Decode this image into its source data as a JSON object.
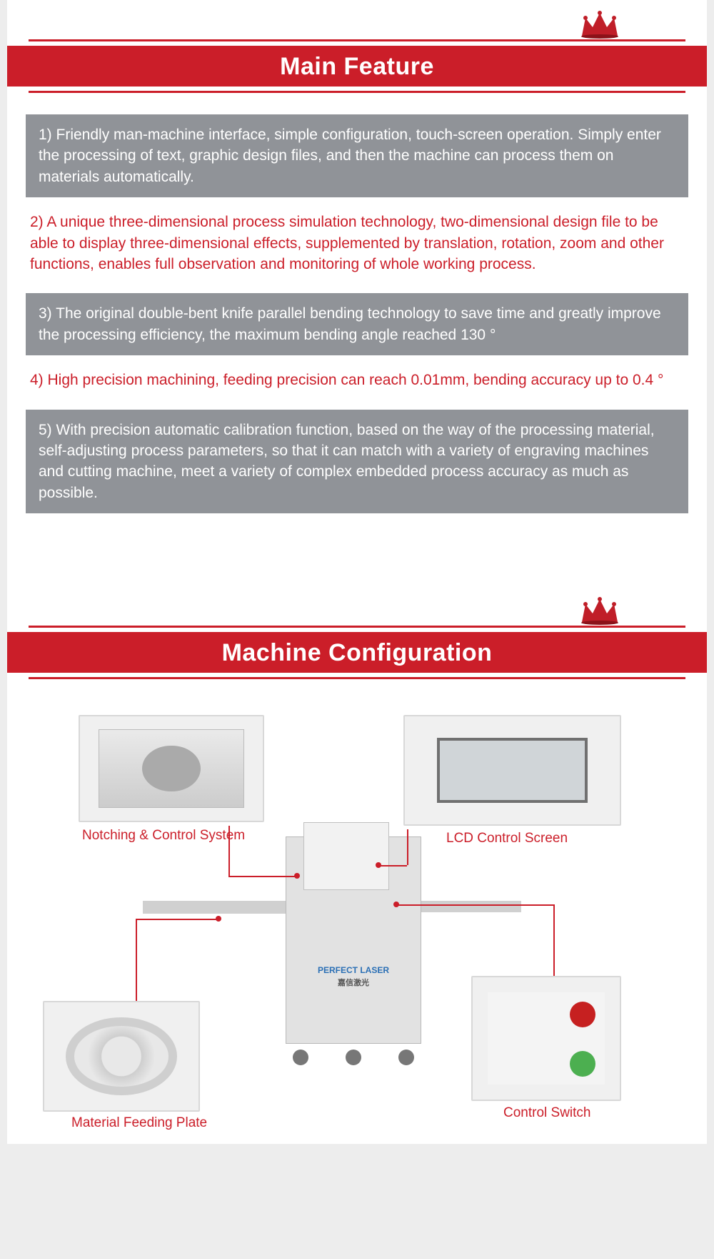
{
  "colors": {
    "brand_red": "#cb1e29",
    "gray_block": "#909398",
    "page_bg": "#ededed"
  },
  "section1": {
    "title": "Main Feature",
    "features": [
      {
        "style": "gray",
        "text": "1) Friendly man-machine interface, simple configuration, touch-screen operation. Simply enter the processing of text, graphic design files, and then the machine can process them on materials automatically."
      },
      {
        "style": "red",
        "text": "2) A unique three-dimensional process simulation technology, two-dimensional design file to be able to display three-dimensional effects, supplemented by translation, rotation, zoom and other functions, enables full observation and monitoring of whole working process."
      },
      {
        "style": "gray",
        "text": "3) The original double-bent knife parallel bending technology to save time and greatly improve the processing efficiency, the maximum bending angle reached 130 °"
      },
      {
        "style": "red",
        "text": "4) High precision machining, feeding precision can reach 0.01mm, bending accuracy up to 0.4 °"
      },
      {
        "style": "gray",
        "text": "5) With precision automatic calibration function, based on the way of the processing material, self-adjusting process parameters, so that it can match with a variety of engraving machines and cutting machine, meet a variety of complex embedded process accuracy as much as possible."
      }
    ]
  },
  "section2": {
    "title": "Machine Configuration",
    "machine_brand": "PERFECT LASER",
    "machine_brand_cn": "嘉信激光",
    "components": {
      "notching": {
        "label": "Notching & Control System"
      },
      "lcd": {
        "label": "LCD Control Screen"
      },
      "feeding": {
        "label": "Material Feeding Plate"
      },
      "switch": {
        "label": "Control Switch"
      }
    }
  }
}
